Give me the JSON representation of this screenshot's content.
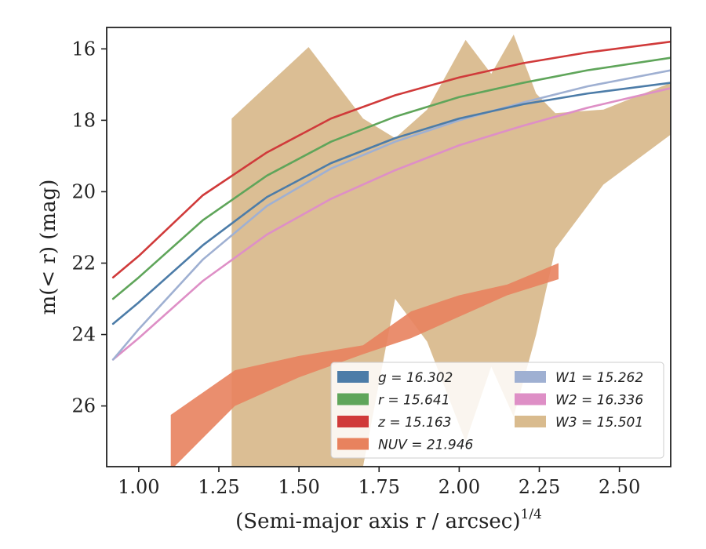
{
  "chart_data": {
    "type": "line",
    "xlabel": "(Semi-major axis r / arcsec)",
    "xlabel_exponent": "1/4",
    "ylabel": "m(< r) (mag)",
    "xlim": [
      0.9,
      2.66
    ],
    "ylim": [
      27.7,
      15.4
    ],
    "y_inverted": true,
    "x_ticks": [
      "1.00",
      "1.25",
      "1.50",
      "1.75",
      "2.00",
      "2.25",
      "2.50"
    ],
    "y_ticks": [
      "16",
      "18",
      "20",
      "22",
      "24",
      "26"
    ],
    "legend_position": "lower-right",
    "series": [
      {
        "name": "g = 16.302",
        "color": "#4c7ca8",
        "style": "curve",
        "x": [
          0.92,
          1.0,
          1.2,
          1.4,
          1.6,
          1.8,
          2.0,
          2.2,
          2.4,
          2.66
        ],
        "y": [
          23.7,
          23.1,
          21.5,
          20.15,
          19.2,
          18.5,
          17.95,
          17.55,
          17.25,
          16.95
        ]
      },
      {
        "name": "r = 15.641",
        "color": "#5fa55a",
        "style": "curve",
        "x": [
          0.92,
          1.0,
          1.2,
          1.4,
          1.6,
          1.8,
          2.0,
          2.2,
          2.4,
          2.66
        ],
        "y": [
          23.0,
          22.4,
          20.8,
          19.55,
          18.6,
          17.9,
          17.35,
          16.95,
          16.6,
          16.25
        ]
      },
      {
        "name": "z = 15.163",
        "color": "#d03a3a",
        "style": "curve",
        "x": [
          0.92,
          1.0,
          1.2,
          1.4,
          1.6,
          1.8,
          2.0,
          2.2,
          2.4,
          2.66
        ],
        "y": [
          22.4,
          21.8,
          20.1,
          18.9,
          17.95,
          17.3,
          16.8,
          16.4,
          16.1,
          15.8
        ]
      },
      {
        "name": "NUV = 21.946",
        "color": "#e8825e",
        "style": "band",
        "x": [
          1.1,
          1.3,
          1.5,
          1.7,
          1.85,
          2.0,
          2.15,
          2.31
        ],
        "y_low": [
          27.8,
          26.0,
          25.2,
          24.55,
          24.1,
          23.5,
          22.9,
          22.45
        ],
        "y_high": [
          26.25,
          25.0,
          24.6,
          24.3,
          23.35,
          22.9,
          22.6,
          22.0
        ]
      },
      {
        "name": "W1 = 15.262",
        "color": "#9fb0d2",
        "style": "curve",
        "x": [
          0.92,
          1.0,
          1.2,
          1.4,
          1.6,
          1.8,
          2.0,
          2.2,
          2.4,
          2.66
        ],
        "y": [
          24.7,
          23.85,
          21.9,
          20.4,
          19.35,
          18.6,
          18.0,
          17.5,
          17.05,
          16.6
        ]
      },
      {
        "name": "W2 = 16.336",
        "color": "#de8fc6",
        "style": "curve",
        "x": [
          0.92,
          1.0,
          1.2,
          1.4,
          1.6,
          1.8,
          2.0,
          2.2,
          2.4,
          2.66
        ],
        "y": [
          24.7,
          24.1,
          22.5,
          21.2,
          20.2,
          19.4,
          18.7,
          18.15,
          17.65,
          17.1
        ]
      },
      {
        "name": "W3 = 15.501",
        "color": "#d9bb8e",
        "style": "band",
        "x": [
          1.29,
          1.53,
          1.7,
          1.8,
          1.9,
          2.02,
          2.1,
          2.17,
          2.24,
          2.3,
          2.45,
          2.66
        ],
        "y_low": [
          27.7,
          27.7,
          27.7,
          23.0,
          24.2,
          27.0,
          24.9,
          26.3,
          24.0,
          21.6,
          19.8,
          18.4
        ],
        "y_high": [
          17.95,
          15.95,
          17.95,
          18.5,
          17.7,
          15.75,
          16.7,
          15.6,
          17.25,
          17.8,
          17.7,
          16.95
        ]
      }
    ],
    "legend": {
      "columns": [
        [
          "g = 16.302",
          "r = 15.641",
          "z = 15.163",
          "NUV = 21.946"
        ],
        [
          "W1 = 15.262",
          "W2 = 16.336",
          "W3 = 15.501"
        ]
      ]
    }
  }
}
